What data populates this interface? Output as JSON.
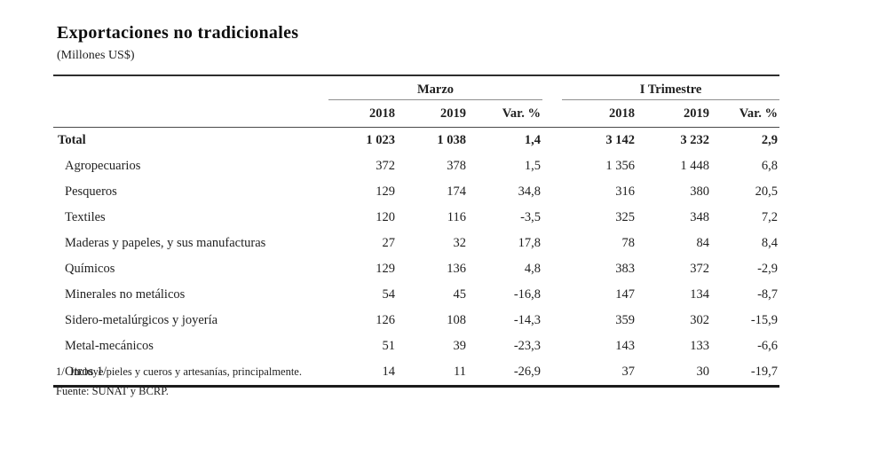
{
  "title": "Exportaciones no tradicionales",
  "subtitle": "(Millones US$)",
  "table": {
    "group_headers": [
      {
        "label": "Marzo"
      },
      {
        "label": "I Trimestre"
      }
    ],
    "col_headers": [
      "2018",
      "2019",
      "Var. %",
      "2018",
      "2019",
      "Var. %"
    ],
    "rows": [
      {
        "label": "Total",
        "bold": true,
        "values": [
          "1 023",
          "1 038",
          "1,4",
          "3 142",
          "3 232",
          "2,9"
        ]
      },
      {
        "label": "Agropecuarios",
        "bold": false,
        "values": [
          "372",
          "378",
          "1,5",
          "1 356",
          "1 448",
          "6,8"
        ]
      },
      {
        "label": "Pesqueros",
        "bold": false,
        "values": [
          "129",
          "174",
          "34,8",
          "316",
          "380",
          "20,5"
        ]
      },
      {
        "label": "Textiles",
        "bold": false,
        "values": [
          "120",
          "116",
          "-3,5",
          "325",
          "348",
          "7,2"
        ]
      },
      {
        "label": "Maderas y papeles, y sus manufacturas",
        "bold": false,
        "values": [
          "27",
          "32",
          "17,8",
          "78",
          "84",
          "8,4"
        ]
      },
      {
        "label": "Químicos",
        "bold": false,
        "values": [
          "129",
          "136",
          "4,8",
          "383",
          "372",
          "-2,9"
        ]
      },
      {
        "label": "Minerales no metálicos",
        "bold": false,
        "values": [
          "54",
          "45",
          "-16,8",
          "147",
          "134",
          "-8,7"
        ]
      },
      {
        "label": "Sidero-metalúrgicos y joyería",
        "bold": false,
        "values": [
          "126",
          "108",
          "-14,3",
          "359",
          "302",
          "-15,9"
        ]
      },
      {
        "label": "Metal-mecánicos",
        "bold": false,
        "values": [
          "51",
          "39",
          "-23,3",
          "143",
          "133",
          "-6,6"
        ]
      },
      {
        "label": "Otros 1/",
        "bold": false,
        "values": [
          "14",
          "11",
          "-26,9",
          "37",
          "30",
          "-19,7"
        ]
      }
    ]
  },
  "footnotes": {
    "note1": "1/  Incluye pieles y cueros y artesanías, principalmente.",
    "note2": "Fuente: SUNAT y BCRP."
  },
  "colors": {
    "text": "#1f1f1f",
    "rule_dark": "#2e2e2e",
    "rule_gray": "#8f8f8f",
    "rule_bottom": "#1c1c1c"
  },
  "chart_data": {
    "type": "table",
    "title": "Exportaciones no tradicionales",
    "unit": "Millones US$",
    "column_groups": [
      "Marzo",
      "I Trimestre"
    ],
    "columns": [
      "Marzo 2018",
      "Marzo 2019",
      "Marzo Var. %",
      "I Trimestre 2018",
      "I Trimestre 2019",
      "I Trimestre Var. %"
    ],
    "rows": [
      {
        "category": "Total",
        "values": [
          1023,
          1038,
          1.4,
          3142,
          3232,
          2.9
        ]
      },
      {
        "category": "Agropecuarios",
        "values": [
          372,
          378,
          1.5,
          1356,
          1448,
          6.8
        ]
      },
      {
        "category": "Pesqueros",
        "values": [
          129,
          174,
          34.8,
          316,
          380,
          20.5
        ]
      },
      {
        "category": "Textiles",
        "values": [
          120,
          116,
          -3.5,
          325,
          348,
          7.2
        ]
      },
      {
        "category": "Maderas y papeles, y sus manufacturas",
        "values": [
          27,
          32,
          17.8,
          78,
          84,
          8.4
        ]
      },
      {
        "category": "Químicos",
        "values": [
          129,
          136,
          4.8,
          383,
          372,
          -2.9
        ]
      },
      {
        "category": "Minerales no metálicos",
        "values": [
          54,
          45,
          -16.8,
          147,
          134,
          -8.7
        ]
      },
      {
        "category": "Sidero-metalúrgicos y joyería",
        "values": [
          126,
          108,
          -14.3,
          359,
          302,
          -15.9
        ]
      },
      {
        "category": "Metal-mecánicos",
        "values": [
          51,
          39,
          -23.3,
          143,
          133,
          -6.6
        ]
      },
      {
        "category": "Otros 1/",
        "values": [
          14,
          11,
          -26.9,
          37,
          30,
          -19.7
        ]
      }
    ],
    "footnote": "1/ Incluye pieles y cueros y artesanías, principalmente.",
    "source": "Fuente: SUNAT y BCRP."
  }
}
